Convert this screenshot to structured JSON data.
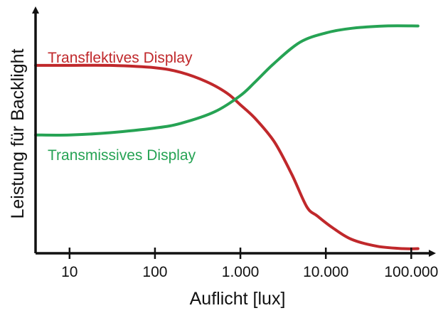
{
  "chart_data": {
    "type": "line",
    "title": "",
    "xlabel": "Auflicht [lux]",
    "ylabel": "Leistung für Backlight",
    "x_scale": "log",
    "xlim": [
      4,
      130000
    ],
    "ylim": [
      0,
      1
    ],
    "y_ticks_shown": false,
    "grid": false,
    "x_ticks": [
      {
        "value": 10,
        "label": "10"
      },
      {
        "value": 100,
        "label": "100"
      },
      {
        "value": 1000,
        "label": "1.000"
      },
      {
        "value": 10000,
        "label": "10.000"
      },
      {
        "value": 100000,
        "label": "100.000"
      }
    ],
    "series": [
      {
        "name": "Transflektives Display",
        "color": "#c0282b",
        "x": [
          4,
          10,
          30,
          100,
          200,
          400,
          700,
          1000,
          1500,
          2500,
          4000,
          6000,
          8000,
          12000,
          20000,
          40000,
          80000,
          120000
        ],
        "y": [
          0.81,
          0.81,
          0.81,
          0.8,
          0.78,
          0.74,
          0.69,
          0.64,
          0.58,
          0.48,
          0.34,
          0.2,
          0.16,
          0.11,
          0.06,
          0.03,
          0.02,
          0.02
        ]
      },
      {
        "name": "Transmissives Display",
        "color": "#26a354",
        "x": [
          4,
          10,
          30,
          100,
          200,
          500,
          1000,
          1500,
          2500,
          5000,
          10000,
          20000,
          50000,
          120000
        ],
        "y": [
          0.51,
          0.51,
          0.52,
          0.54,
          0.56,
          0.61,
          0.68,
          0.74,
          0.82,
          0.91,
          0.95,
          0.97,
          0.98,
          0.98
        ]
      }
    ]
  }
}
